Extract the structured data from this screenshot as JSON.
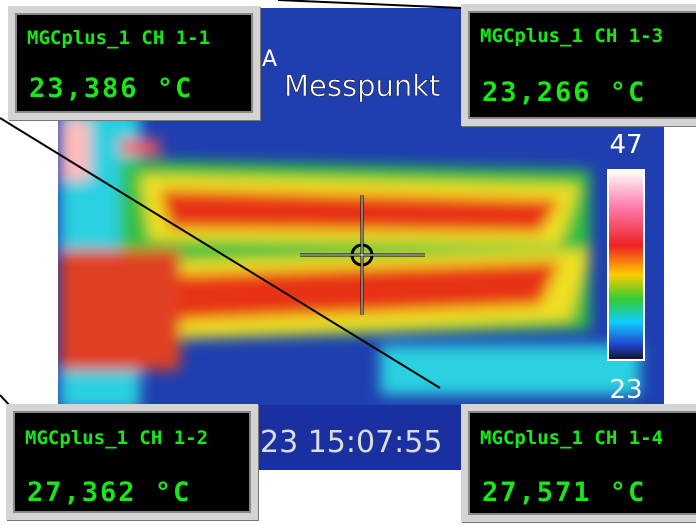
{
  "image": {
    "label": "Messpunkt",
    "corner_mark": "A",
    "scale_max": "47",
    "scale_min": "23",
    "timestamp": "23 15:07:55"
  },
  "panels": [
    {
      "channel": "MGCplus_1 CH 1-1",
      "reading": "23,386 °C"
    },
    {
      "channel": "MGCplus_1 CH 1-3",
      "reading": "23,266 °C"
    },
    {
      "channel": "MGCplus_1 CH 1-2",
      "reading": "27,362 °C"
    },
    {
      "channel": "MGCplus_1 CH 1-4",
      "reading": "27,571 °C"
    }
  ]
}
